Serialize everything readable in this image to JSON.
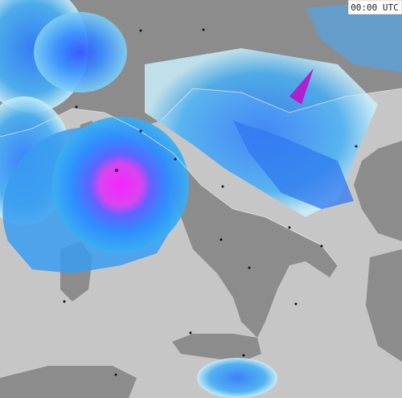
{
  "timestamp": "00:00 UTC"
}
